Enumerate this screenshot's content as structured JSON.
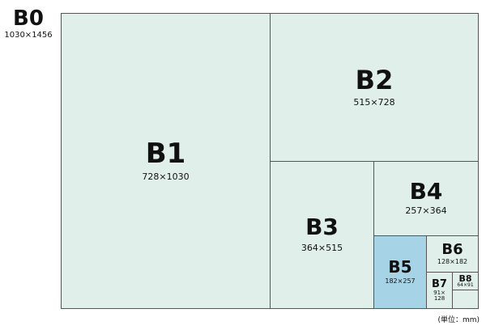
{
  "sizes": {
    "b0": {
      "name": "B0",
      "dims": "1030×1456"
    },
    "b1": {
      "name": "B1",
      "dims": "728×1030"
    },
    "b2": {
      "name": "B2",
      "dims": "515×728"
    },
    "b3": {
      "name": "B3",
      "dims": "364×515"
    },
    "b4": {
      "name": "B4",
      "dims": "257×364"
    },
    "b5": {
      "name": "B5",
      "dims": "182×257"
    },
    "b6": {
      "name": "B6",
      "dims": "128×182"
    },
    "b7": {
      "name": "B7",
      "dims_line1": "91×",
      "dims_line2": "128"
    },
    "b8": {
      "name": "B8",
      "dims": "64×91"
    }
  },
  "unit_note": "(単位：mm)",
  "colors": {
    "panel": "#e0efea",
    "highlight": "#a6d3e6",
    "border": "#555555"
  }
}
